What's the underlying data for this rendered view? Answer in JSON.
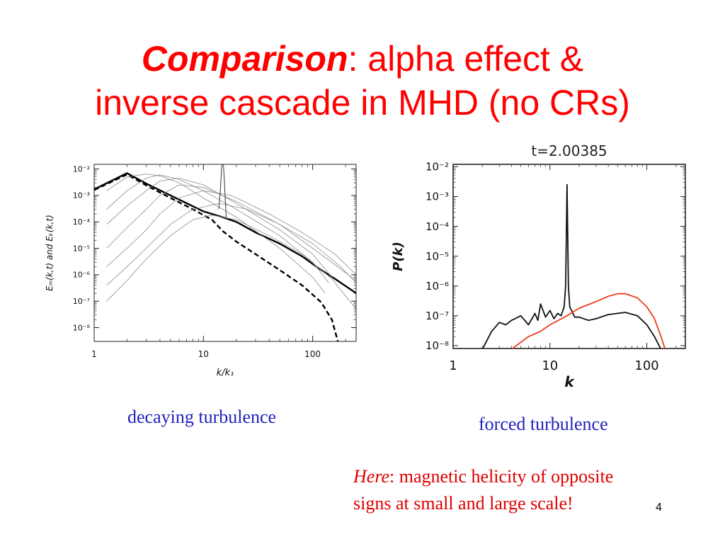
{
  "slide": {
    "title_em": "Comparison",
    "title_rest_line1": ": alpha effect &",
    "title_line2": "inverse cascade in MHD (no CRs)",
    "caption_left": "decaying turbulence",
    "caption_right": "forced turbulence",
    "note_em": "Here",
    "note_line1_rest": ": magnetic helicity of opposite",
    "note_line2": "signs at small and large scale!",
    "page_number": "4"
  },
  "chart_data": [
    {
      "type": "line",
      "xlabel": "k/k₁",
      "ylabel": "Eₘ(k,t) and Eₖ(k,t)",
      "x_scale": "log",
      "y_scale": "log",
      "xlim": [
        1,
        250
      ],
      "ylim": [
        3e-09,
        0.015
      ],
      "x_ticks": [
        "1",
        "10",
        "100"
      ],
      "y_ticks": [
        "10⁻²",
        "10⁻³",
        "10⁻⁴",
        "10⁻⁵",
        "10⁻⁶",
        "10⁻⁷",
        "10⁻⁸"
      ],
      "series": [
        {
          "style": "solid-thick",
          "points": [
            [
              1,
              0.0017
            ],
            [
              2,
              0.007
            ],
            [
              3,
              0.0028
            ],
            [
              5,
              0.001
            ],
            [
              10,
              0.00025
            ],
            [
              15,
              0.00015
            ],
            [
              20,
              0.0001
            ],
            [
              30,
              4e-05
            ],
            [
              50,
              1.5e-05
            ],
            [
              80,
              5e-06
            ],
            [
              120,
              1.5e-06
            ],
            [
              160,
              7e-07
            ],
            [
              250,
              2e-07
            ]
          ]
        },
        {
          "style": "dashed-thick",
          "points": [
            [
              1,
              0.0016
            ],
            [
              2,
              0.0062
            ],
            [
              3,
              0.0024
            ],
            [
              5,
              0.0008
            ],
            [
              8,
              0.0003
            ],
            [
              12,
              0.00012
            ],
            [
              15,
              4.5e-05
            ],
            [
              20,
              1.8e-05
            ],
            [
              30,
              6e-06
            ],
            [
              50,
              1.5e-06
            ],
            [
              80,
              4e-07
            ],
            [
              120,
              9e-08
            ],
            [
              150,
              2e-08
            ],
            [
              170,
              3e-09
            ]
          ]
        },
        {
          "style": "thin-gray",
          "points": [
            [
              1.3,
              1e-07
            ],
            [
              2,
              6e-07
            ],
            [
              3,
              4e-06
            ],
            [
              5,
              3e-05
            ],
            [
              8,
              0.00012
            ],
            [
              12,
              0.00018
            ],
            [
              20,
              0.00012
            ],
            [
              40,
              3e-05
            ],
            [
              80,
              6e-06
            ],
            [
              150,
              7e-07
            ],
            [
              250,
              5e-08
            ]
          ]
        },
        {
          "style": "thin-gray",
          "points": [
            [
              1.3,
              4e-07
            ],
            [
              2,
              2e-06
            ],
            [
              3,
              1e-05
            ],
            [
              5,
              8e-05
            ],
            [
              8,
              0.0003
            ],
            [
              14,
              0.0005
            ],
            [
              25,
              0.0003
            ],
            [
              50,
              8e-05
            ],
            [
              100,
              1.5e-05
            ],
            [
              180,
              2e-06
            ],
            [
              250,
              5e-07
            ]
          ]
        },
        {
          "style": "thin-gray",
          "points": [
            [
              1.3,
              2e-06
            ],
            [
              2,
              1e-05
            ],
            [
              3,
              5e-05
            ],
            [
              4,
              0.0002
            ],
            [
              6,
              0.0008
            ],
            [
              10,
              0.0015
            ],
            [
              18,
              0.001
            ],
            [
              40,
              0.0002
            ],
            [
              80,
              4e-05
            ],
            [
              160,
              6e-06
            ],
            [
              250,
              1e-06
            ]
          ]
        },
        {
          "style": "thin-gray",
          "points": [
            [
              1.3,
              1e-05
            ],
            [
              2,
              6e-05
            ],
            [
              3,
              0.0003
            ],
            [
              4,
              0.001
            ],
            [
              6,
              0.0025
            ],
            [
              10,
              0.002
            ],
            [
              20,
              0.0006
            ],
            [
              50,
              8e-05
            ],
            [
              100,
              1e-05
            ],
            [
              200,
              1.2e-06
            ],
            [
              250,
              6e-07
            ]
          ]
        },
        {
          "style": "thin-gray",
          "points": [
            [
              1.3,
              8e-05
            ],
            [
              2,
              0.0004
            ],
            [
              3,
              0.0015
            ],
            [
              4,
              0.0035
            ],
            [
              6,
              0.0045
            ],
            [
              10,
              0.0025
            ],
            [
              20,
              0.0005
            ],
            [
              50,
              5e-05
            ],
            [
              100,
              6e-06
            ],
            [
              150,
              8e-07
            ]
          ]
        },
        {
          "style": "thin-gray",
          "points": [
            [
              1.3,
              0.0003
            ],
            [
              2,
              0.0015
            ],
            [
              3,
              0.0045
            ],
            [
              4,
              0.006
            ],
            [
              6,
              0.004
            ],
            [
              10,
              0.0015
            ],
            [
              20,
              0.0003
            ],
            [
              50,
              3e-05
            ],
            [
              100,
              3e-06
            ],
            [
              140,
              5e-07
            ]
          ]
        },
        {
          "style": "thin-gray",
          "points": [
            [
              1.3,
              0.0015
            ],
            [
              2,
              0.005
            ],
            [
              3,
              0.0065
            ],
            [
              4,
              0.0055
            ],
            [
              6,
              0.003
            ],
            [
              10,
              0.0008
            ],
            [
              20,
              0.00015
            ],
            [
              50,
              1e-05
            ],
            [
              100,
              8e-07
            ],
            [
              130,
              2e-07
            ]
          ]
        },
        {
          "style": "peak",
          "points": [
            [
              13.8,
              0.0003
            ],
            [
              14.3,
              0.0016
            ],
            [
              14.7,
              0.012
            ],
            [
              15,
              0.015
            ],
            [
              15.3,
              0.012
            ],
            [
              15.7,
              0.0016
            ],
            [
              16.2,
              0.00013
            ]
          ]
        }
      ]
    },
    {
      "type": "line",
      "title": "t=2.00385",
      "xlabel": "k",
      "ylabel": "P(k)",
      "x_scale": "log",
      "y_scale": "log",
      "xlim": [
        1,
        250
      ],
      "ylim": [
        8e-09,
        0.012
      ],
      "x_ticks": [
        "1",
        "10",
        "100"
      ],
      "y_ticks": [
        "10⁻²",
        "10⁻³",
        "10⁻⁴",
        "10⁻⁵",
        "10⁻⁶",
        "10⁻⁷",
        "10⁻⁸"
      ],
      "series": [
        {
          "color": "#111111",
          "points": [
            [
              2,
              7.5e-09
            ],
            [
              2.5,
              3e-08
            ],
            [
              3,
              6e-08
            ],
            [
              3.5,
              5e-08
            ],
            [
              4,
              7e-08
            ],
            [
              5,
              1e-07
            ],
            [
              6,
              5e-08
            ],
            [
              7,
              1.2e-07
            ],
            [
              7.5,
              7e-08
            ],
            [
              8,
              2.5e-07
            ],
            [
              9,
              9e-08
            ],
            [
              10,
              1.5e-07
            ],
            [
              11,
              8e-08
            ],
            [
              12,
              1.2e-07
            ],
            [
              13,
              1e-07
            ],
            [
              14,
              2e-07
            ],
            [
              14.5,
              1e-06
            ],
            [
              14.8,
              0.0001
            ],
            [
              15,
              0.0025
            ],
            [
              15.2,
              0.0001
            ],
            [
              15.5,
              1e-06
            ],
            [
              16,
              2e-07
            ],
            [
              18,
              9e-08
            ],
            [
              20,
              9e-08
            ],
            [
              25,
              7e-08
            ],
            [
              30,
              8e-08
            ],
            [
              40,
              1.1e-07
            ],
            [
              60,
              1.3e-07
            ],
            [
              80,
              1e-07
            ],
            [
              100,
              5e-08
            ],
            [
              120,
              2e-08
            ],
            [
              140,
              7.5e-09
            ]
          ]
        },
        {
          "color": "#e8401c",
          "points": [
            [
              4,
              7.5e-09
            ],
            [
              5,
              1.3e-08
            ],
            [
              6,
              2e-08
            ],
            [
              8,
              3e-08
            ],
            [
              10,
              5e-08
            ],
            [
              15,
              1e-07
            ],
            [
              20,
              1.8e-07
            ],
            [
              30,
              3e-07
            ],
            [
              40,
              4.5e-07
            ],
            [
              50,
              5.5e-07
            ],
            [
              60,
              5.5e-07
            ],
            [
              80,
              4e-07
            ],
            [
              100,
              2e-07
            ],
            [
              120,
              8e-08
            ],
            [
              140,
              2e-08
            ],
            [
              155,
              7.5e-09
            ]
          ]
        }
      ]
    }
  ]
}
